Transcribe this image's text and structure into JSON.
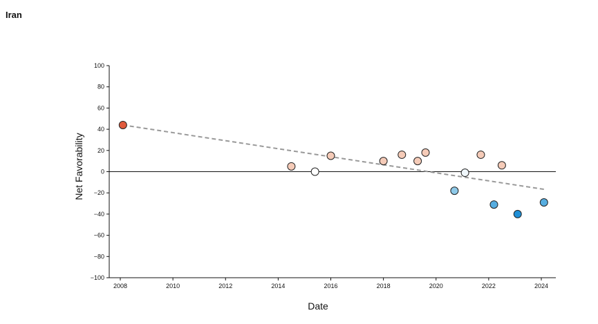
{
  "page": {
    "title": "Iran"
  },
  "chart_data": {
    "type": "scatter",
    "title": "Iran",
    "xlabel": "Date",
    "ylabel": "Net Favorability",
    "xlim": [
      2008,
      2024
    ],
    "ylim": [
      -100,
      100
    ],
    "x_ticks": [
      "2008",
      "2010",
      "2012",
      "2014",
      "2016",
      "2018",
      "2020",
      "2022",
      "2024"
    ],
    "y_ticks": [
      "100",
      "80",
      "60",
      "40",
      "20",
      "0",
      "−20",
      "−40",
      "−60",
      "−80",
      "−100"
    ],
    "zero_line": true,
    "grid": false,
    "legend": "none",
    "trend_line": {
      "style": "dashed",
      "color": "#999999",
      "x": [
        2008.1,
        2024.2
      ],
      "y": [
        44,
        -17
      ]
    },
    "colors": {
      "strong_positive": "#e05a3d",
      "light_positive": "#f5cbb8",
      "neutral": "#ffffff",
      "light_negative": "#8ec9e8",
      "strong_negative": "#1f8fd6"
    },
    "points": [
      {
        "x": 2008.1,
        "y": 44,
        "color": "#e05a3d"
      },
      {
        "x": 2014.5,
        "y": 5,
        "color": "#f5cbb8"
      },
      {
        "x": 2015.4,
        "y": 0,
        "color": "#ffffff"
      },
      {
        "x": 2016.0,
        "y": 15,
        "color": "#f5cbb8"
      },
      {
        "x": 2018.0,
        "y": 10,
        "color": "#f5cbb8"
      },
      {
        "x": 2018.7,
        "y": 16,
        "color": "#f5cbb8"
      },
      {
        "x": 2019.3,
        "y": 10,
        "color": "#f5cbb8"
      },
      {
        "x": 2019.6,
        "y": 18,
        "color": "#f5cbb8"
      },
      {
        "x": 2020.7,
        "y": -18,
        "color": "#8ec9e8"
      },
      {
        "x": 2021.1,
        "y": -1,
        "color": "#f0f7fc"
      },
      {
        "x": 2021.7,
        "y": 16,
        "color": "#f5cbb8"
      },
      {
        "x": 2022.2,
        "y": -31,
        "color": "#56ade0"
      },
      {
        "x": 2022.5,
        "y": 6,
        "color": "#f5cbb8"
      },
      {
        "x": 2023.1,
        "y": -40,
        "color": "#1f8fd6"
      },
      {
        "x": 2024.1,
        "y": -29,
        "color": "#56ade0"
      }
    ]
  }
}
